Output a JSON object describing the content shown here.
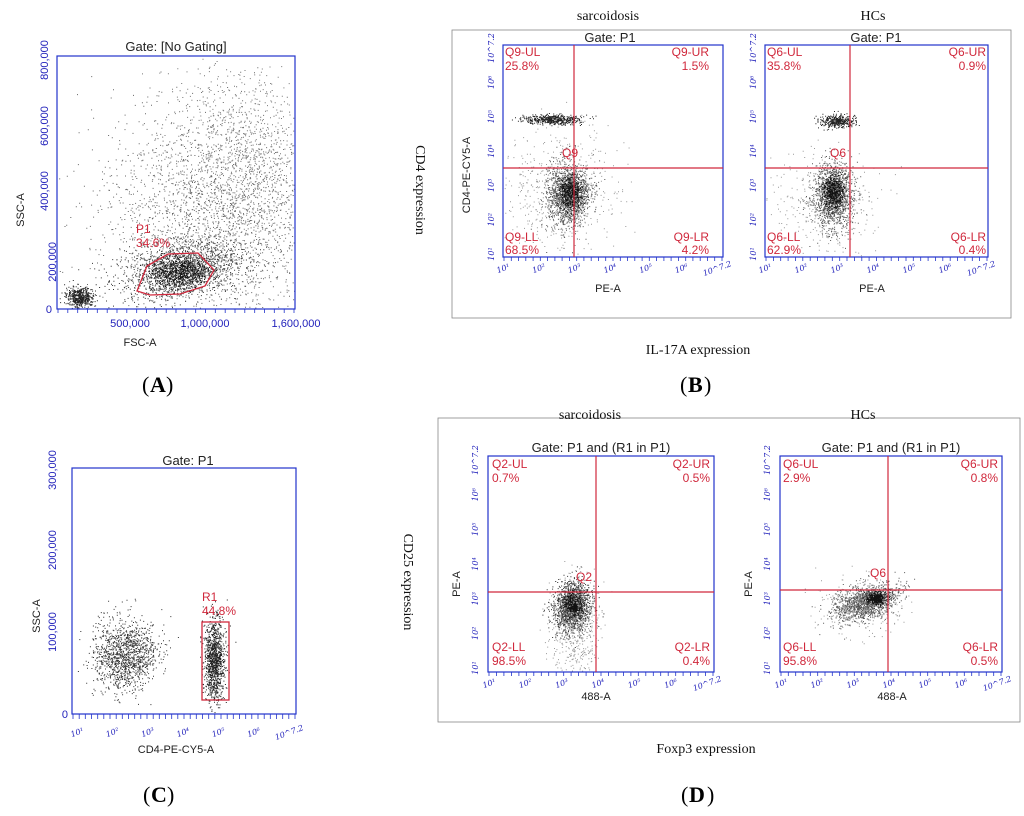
{
  "figure_caption_labels": {
    "a": "A",
    "b": "B",
    "c": "C",
    "d": "D"
  },
  "colors": {
    "frame": "#2233cc",
    "gate": "#d0283c",
    "dots": "#333333"
  },
  "chart_data": [
    {
      "id": "A",
      "type": "scatter",
      "gate_title": "Gate: [No Gating]",
      "xlabel": "FSC-A",
      "ylabel": "SSC-A",
      "xticks": [
        "500,000",
        "1,000,000",
        "1,600,000"
      ],
      "yticks": [
        "0",
        "200,000",
        "400,000",
        "600,000",
        "800,000"
      ],
      "xlim": [
        0,
        1600000
      ],
      "ylim": [
        0,
        800000
      ],
      "regions": [
        {
          "name": "P1",
          "percent": "34.6%"
        }
      ]
    },
    {
      "id": "B",
      "group_titles": [
        "sarcoidosis",
        "HCs"
      ],
      "ylabel_outer": "CD4 expression",
      "xlabel_outer": "IL-17A  expression",
      "plots": [
        {
          "type": "scatter",
          "gate_title": "Gate: P1",
          "xlabel": "PE-A",
          "ylabel": "CD4-PE-CY5-A",
          "quadrant": "Q9",
          "quadrants": {
            "UL": [
              "Q9-UL",
              "25.8%"
            ],
            "UR": [
              "Q9-UR",
              "1.5%"
            ],
            "LL": [
              "Q9-LL",
              "68.5%"
            ],
            "LR": [
              "Q9-LR",
              "4.2%"
            ]
          }
        },
        {
          "type": "scatter",
          "gate_title": "Gate: P1",
          "xlabel": "PE-A",
          "ylabel": "",
          "quadrant": "Q6",
          "quadrants": {
            "UL": [
              "Q6-UL",
              "35.8%"
            ],
            "UR": [
              "Q6-UR",
              "0.9%"
            ],
            "LL": [
              "Q6-LL",
              "62.9%"
            ],
            "LR": [
              "Q6-LR",
              "0.4%"
            ]
          }
        }
      ],
      "log_ticks": [
        "10¹",
        "10²",
        "10³",
        "10⁴",
        "10⁵",
        "10⁶",
        "10^7.2"
      ],
      "log_ticks_y": [
        "10^7.2",
        "10⁶",
        "10⁵",
        "10⁴",
        "10³",
        "10²",
        "10¹"
      ]
    },
    {
      "id": "C",
      "type": "scatter",
      "gate_title": "Gate: P1",
      "xlabel": "CD4-PE-CY5-A",
      "ylabel": "SSC-A",
      "yticks": [
        "0",
        "100,000",
        "200,000",
        "300,000"
      ],
      "xticks_log": [
        "10¹",
        "10²",
        "10³",
        "10⁴",
        "10⁵",
        "10⁶",
        "10^7.2"
      ],
      "ylim": [
        0,
        300000
      ],
      "regions": [
        {
          "name": "R1",
          "percent": "44.8%"
        }
      ]
    },
    {
      "id": "D",
      "group_titles": [
        "sarcoidosis",
        "HCs"
      ],
      "ylabel_outer": "CD25  expression",
      "xlabel_outer": "Foxp3  expression",
      "plots": [
        {
          "type": "scatter",
          "gate_title": "Gate: P1 and (R1 in P1)",
          "xlabel": "488-A",
          "ylabel": "PE-A",
          "quadrant": "Q2",
          "quadrants": {
            "UL": [
              "Q2-UL",
              "0.7%"
            ],
            "UR": [
              "Q2-UR",
              "0.5%"
            ],
            "LL": [
              "Q2-LL",
              "98.5%"
            ],
            "LR": [
              "Q2-LR",
              "0.4%"
            ]
          }
        },
        {
          "type": "scatter",
          "gate_title": "Gate: P1 and (R1 in P1)",
          "xlabel": "488-A",
          "ylabel": "PE-A",
          "quadrant": "Q6",
          "quadrants": {
            "UL": [
              "Q6-UL",
              "2.9%"
            ],
            "UR": [
              "Q6-UR",
              "0.8%"
            ],
            "LL": [
              "Q6-LL",
              "95.8%"
            ],
            "LR": [
              "Q6-LR",
              "0.5%"
            ]
          }
        }
      ],
      "log_ticks": [
        "10¹",
        "10²",
        "10³",
        "10⁴",
        "10⁵",
        "10⁶",
        "10^7.2"
      ],
      "log_ticks_y": [
        "10^7.2",
        "10⁶",
        "10⁵",
        "10⁴",
        "10³",
        "10²",
        "10¹"
      ]
    }
  ]
}
